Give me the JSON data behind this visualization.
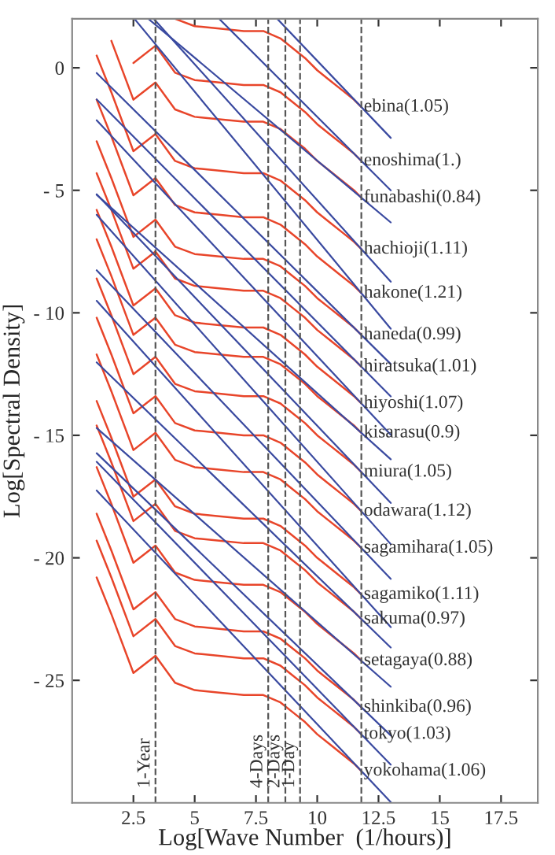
{
  "chart_data": {
    "type": "line",
    "xlabel": "Log[Wave Number  (1/hours)]",
    "ylabel": "Log[Spectral Density]",
    "x": [
      1.0,
      1.6,
      2.5,
      3.4,
      4.2,
      5.0,
      6.0,
      7.0,
      7.8,
      8.5,
      9.0,
      9.5,
      10.0,
      10.5,
      11.0,
      11.5,
      11.8
    ],
    "xlim": [
      0,
      19
    ],
    "ylim": [
      -30,
      2
    ],
    "xticks": [
      2.5,
      5,
      7.5,
      10,
      12.5,
      15,
      17.5
    ],
    "yticks": [
      0,
      {
        "value": -5,
        "label": "- 5"
      },
      {
        "value": -10,
        "label": "- 10"
      },
      {
        "value": -15,
        "label": "- 15"
      },
      {
        "value": -20,
        "label": "- 20"
      },
      {
        "value": -25,
        "label": "- 25"
      }
    ],
    "grid": false,
    "legend": false,
    "line_style": "solid",
    "marker": "none",
    "ref_lines": [
      {
        "axis": "x",
        "value": 3.4,
        "label": "1-Year",
        "color": "#555555",
        "line_style": "dashed"
      },
      {
        "axis": "x",
        "value": 8.0,
        "label": "4-Days",
        "color": "#555555",
        "line_style": "dashed"
      },
      {
        "axis": "x",
        "value": 8.7,
        "label": "2-Days",
        "color": "#555555",
        "line_style": "dashed"
      },
      {
        "axis": "x",
        "value": 9.3,
        "label": "1-Day",
        "color": "#555555",
        "line_style": "dashed"
      },
      {
        "axis": "x",
        "value": 11.8,
        "color": "#555555",
        "line_style": "dashed"
      }
    ],
    "series": [
      {
        "name": "ebina(1.05)",
        "color": "#e8452a",
        "values": [
          null,
          null,
          null,
          null,
          2.0,
          1.7,
          1.6,
          1.5,
          1.5,
          1.2,
          0.8,
          0.4,
          -0.1,
          -0.5,
          -0.9,
          -1.3,
          -1.6
        ]
      },
      {
        "name": "enoshima(1.)",
        "color": "#e8452a",
        "values": [
          null,
          null,
          0.2,
          0.9,
          -0.2,
          -0.5,
          -0.6,
          -0.7,
          -0.7,
          -1.0,
          -1.4,
          -1.8,
          -2.3,
          -2.7,
          -3.1,
          -3.5,
          -3.8
        ]
      },
      {
        "name": "funabashi(0.84)",
        "color": "#e8452a",
        "values": [
          null,
          1.1,
          -1.3,
          -0.6,
          -1.7,
          -2.0,
          -2.1,
          -2.2,
          -2.2,
          -2.5,
          -2.9,
          -3.3,
          -3.8,
          -4.2,
          -4.6,
          -5.0,
          -5.3
        ]
      },
      {
        "name": "hachioji(1.11)",
        "color": "#e8452a",
        "values": [
          0.5,
          -1.0,
          -3.4,
          -2.7,
          -3.8,
          -4.1,
          -4.2,
          -4.3,
          -4.3,
          -4.6,
          -5.0,
          -5.4,
          -5.9,
          -6.3,
          -6.7,
          -7.1,
          -7.4
        ]
      },
      {
        "name": "hakone(1.21)",
        "color": "#e8452a",
        "values": [
          -1.3,
          -2.8,
          -5.2,
          -4.5,
          -5.6,
          -5.9,
          -6.0,
          -6.1,
          -6.1,
          -6.4,
          -6.8,
          -7.2,
          -7.7,
          -8.1,
          -8.5,
          -8.9,
          -9.2
        ]
      },
      {
        "name": "haneda(0.99)",
        "color": "#e8452a",
        "values": [
          -3.0,
          -4.5,
          -6.9,
          -6.2,
          -7.3,
          -7.6,
          -7.7,
          -7.8,
          -7.8,
          -8.1,
          -8.5,
          -8.9,
          -9.4,
          -9.8,
          -10.2,
          -10.6,
          -10.9
        ]
      },
      {
        "name": "hiratsuka(1.01)",
        "color": "#e8452a",
        "values": [
          -4.3,
          -5.8,
          -8.2,
          -7.5,
          -8.6,
          -8.9,
          -9.0,
          -9.1,
          -9.1,
          -9.4,
          -9.8,
          -10.2,
          -10.7,
          -11.1,
          -11.5,
          -11.9,
          -12.2
        ]
      },
      {
        "name": "hiyoshi(1.07)",
        "color": "#e8452a",
        "values": [
          -5.8,
          -7.3,
          -9.7,
          -9.0,
          -10.1,
          -10.4,
          -10.5,
          -10.6,
          -10.6,
          -10.9,
          -11.3,
          -11.7,
          -12.2,
          -12.6,
          -13.0,
          -13.4,
          -13.7
        ]
      },
      {
        "name": "kisarasu(0.9)",
        "color": "#e8452a",
        "values": [
          -7.0,
          -8.5,
          -10.9,
          -10.2,
          -11.3,
          -11.6,
          -11.7,
          -11.8,
          -11.8,
          -12.1,
          -12.5,
          -12.9,
          -13.4,
          -13.8,
          -14.2,
          -14.6,
          -14.9
        ]
      },
      {
        "name": "miura(1.05)",
        "color": "#e8452a",
        "values": [
          -8.6,
          -10.1,
          -12.5,
          -11.8,
          -12.9,
          -13.2,
          -13.3,
          -13.4,
          -13.4,
          -13.7,
          -14.1,
          -14.5,
          -15.0,
          -15.4,
          -15.8,
          -16.2,
          -16.5
        ]
      },
      {
        "name": "odawara(1.12)",
        "color": "#e8452a",
        "values": [
          -10.2,
          -11.7,
          -14.1,
          -13.4,
          -14.5,
          -14.8,
          -14.9,
          -15.0,
          -15.0,
          -15.3,
          -15.7,
          -16.1,
          -16.6,
          -17.0,
          -17.4,
          -17.8,
          -18.1
        ]
      },
      {
        "name": "sagamihara(1.05)",
        "color": "#e8452a",
        "values": [
          -11.7,
          -13.2,
          -15.6,
          -14.9,
          -16.0,
          -16.3,
          -16.4,
          -16.5,
          -16.5,
          -16.8,
          -17.2,
          -17.6,
          -18.1,
          -18.5,
          -18.9,
          -19.3,
          -19.6
        ]
      },
      {
        "name": "sagamiko(1.11)",
        "color": "#e8452a",
        "values": [
          -13.6,
          -15.1,
          -17.5,
          -16.8,
          -17.9,
          -18.2,
          -18.3,
          -18.4,
          -18.4,
          -18.7,
          -19.1,
          -19.5,
          -20.0,
          -20.4,
          -20.8,
          -21.2,
          -21.5
        ]
      },
      {
        "name": "sakuma(0.97)",
        "color": "#e8452a",
        "values": [
          -14.6,
          -16.1,
          -18.5,
          -17.8,
          -18.9,
          -19.2,
          -19.3,
          -19.4,
          -19.4,
          -19.7,
          -20.1,
          -20.5,
          -21.0,
          -21.4,
          -21.8,
          -22.2,
          -22.5
        ]
      },
      {
        "name": "setagaya(0.88)",
        "color": "#e8452a",
        "values": [
          -16.3,
          -17.8,
          -20.2,
          -19.5,
          -20.6,
          -20.9,
          -21.0,
          -21.1,
          -21.1,
          -21.4,
          -21.8,
          -22.2,
          -22.7,
          -23.1,
          -23.5,
          -23.9,
          -24.2
        ]
      },
      {
        "name": "shinkiba(0.96)",
        "color": "#e8452a",
        "values": [
          -18.2,
          -19.7,
          -22.1,
          -21.4,
          -22.5,
          -22.8,
          -22.9,
          -23.0,
          -23.0,
          -23.3,
          -23.7,
          -24.1,
          -24.6,
          -25.0,
          -25.4,
          -25.8,
          -26.1
        ]
      },
      {
        "name": "tokyo(1.03)",
        "color": "#e8452a",
        "values": [
          -19.3,
          -20.8,
          -23.2,
          -22.5,
          -23.6,
          -23.9,
          -24.0,
          -24.1,
          -24.1,
          -24.4,
          -24.8,
          -25.2,
          -25.7,
          -26.1,
          -26.5,
          -26.9,
          -27.2
        ]
      },
      {
        "name": "yokohama(1.06)",
        "color": "#e8452a",
        "values": [
          -20.8,
          -22.3,
          -24.7,
          -24.0,
          -25.1,
          -25.4,
          -25.5,
          -25.6,
          -25.6,
          -25.9,
          -26.3,
          -26.7,
          -27.2,
          -27.6,
          -28.0,
          -28.4,
          -28.7
        ]
      },
      {
        "type": "line",
        "color": "#3a4aa0",
        "x": [
          8.37,
          13
        ],
        "values": [
          2.0,
          -2.86
        ]
      },
      {
        "type": "line",
        "color": "#3a4aa0",
        "x": [
          6.0,
          13
        ],
        "values": [
          2.0,
          -5.0
        ]
      },
      {
        "type": "line",
        "color": "#3a4aa0",
        "x": [
          3.11,
          13
        ],
        "values": [
          2.0,
          -6.31
        ]
      },
      {
        "type": "line",
        "color": "#3a4aa0",
        "x": [
          3.33,
          13
        ],
        "values": [
          2.0,
          -8.73
        ]
      },
      {
        "type": "line",
        "color": "#3a4aa0",
        "x": [
          2.54,
          13
        ],
        "values": [
          2.0,
          -10.65
        ]
      },
      {
        "type": "line",
        "color": "#3a4aa0",
        "x": [
          1,
          13
        ],
        "values": [
          -0.21,
          -12.09
        ]
      },
      {
        "type": "line",
        "color": "#3a4aa0",
        "x": [
          1,
          13
        ],
        "values": [
          -1.29,
          -13.41
        ]
      },
      {
        "type": "line",
        "color": "#3a4aa0",
        "x": [
          1,
          13
        ],
        "values": [
          -2.14,
          -14.98
        ]
      },
      {
        "type": "line",
        "color": "#3a4aa0",
        "x": [
          1,
          13
        ],
        "values": [
          -5.18,
          -15.98
        ]
      },
      {
        "type": "line",
        "color": "#3a4aa0",
        "x": [
          1,
          13
        ],
        "values": [
          -5.16,
          -17.76
        ]
      },
      {
        "type": "line",
        "color": "#3a4aa0",
        "x": [
          1,
          13
        ],
        "values": [
          -6.0,
          -19.44
        ]
      },
      {
        "type": "line",
        "color": "#3a4aa0",
        "x": [
          1,
          13
        ],
        "values": [
          -8.26,
          -20.86
        ]
      },
      {
        "type": "line",
        "color": "#3a4aa0",
        "x": [
          1,
          13
        ],
        "values": [
          -9.51,
          -22.83
        ]
      },
      {
        "type": "line",
        "color": "#3a4aa0",
        "x": [
          1,
          13
        ],
        "values": [
          -12.02,
          -23.66
        ]
      },
      {
        "type": "line",
        "color": "#3a4aa0",
        "x": [
          1,
          13
        ],
        "values": [
          -14.7,
          -25.26
        ]
      },
      {
        "type": "line",
        "color": "#3a4aa0",
        "x": [
          1,
          13
        ],
        "values": [
          -15.73,
          -27.25
        ]
      },
      {
        "type": "line",
        "color": "#3a4aa0",
        "x": [
          1,
          13
        ],
        "values": [
          -16.08,
          -28.44
        ]
      },
      {
        "type": "line",
        "color": "#3a4aa0",
        "x": [
          1,
          13
        ],
        "values": [
          -17.25,
          -29.97
        ]
      }
    ]
  }
}
